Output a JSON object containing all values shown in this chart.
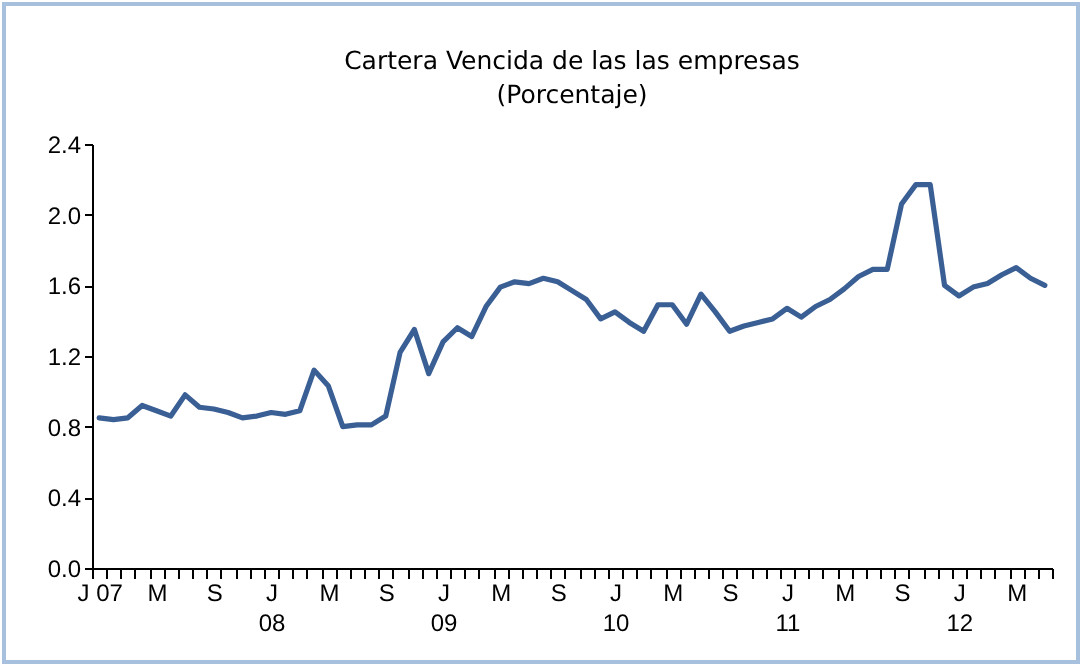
{
  "chart_data": {
    "type": "line",
    "title": "Cartera Vencida de las las empresas",
    "subtitle": "(Porcentaje)",
    "categories": [
      "J 07",
      null,
      null,
      null,
      "M",
      null,
      null,
      null,
      "S",
      null,
      null,
      null,
      "J 08",
      null,
      null,
      null,
      "M",
      null,
      null,
      null,
      "S",
      null,
      null,
      null,
      "J 09",
      null,
      null,
      null,
      "M",
      null,
      null,
      null,
      "S",
      null,
      null,
      null,
      "J 10",
      null,
      null,
      null,
      "M",
      null,
      null,
      null,
      "S",
      null,
      null,
      null,
      "J 11",
      null,
      null,
      null,
      "M",
      null,
      null,
      null,
      "S",
      null,
      null,
      null,
      "J 12",
      null,
      null,
      null,
      "M",
      null,
      null
    ],
    "series": [
      {
        "color": "#3a5f94",
        "values": [
          0.85,
          0.84,
          0.85,
          0.92,
          0.89,
          0.86,
          0.98,
          0.91,
          0.9,
          0.88,
          0.85,
          0.86,
          0.88,
          0.87,
          0.89,
          1.12,
          1.03,
          0.8,
          0.81,
          0.81,
          0.86,
          1.22,
          1.35,
          1.1,
          1.28,
          1.36,
          1.31,
          1.48,
          1.59,
          1.62,
          1.61,
          1.64,
          1.62,
          1.57,
          1.52,
          1.41,
          1.45,
          1.39,
          1.34,
          1.49,
          1.49,
          1.38,
          1.55,
          1.45,
          1.34,
          1.37,
          1.39,
          1.41,
          1.47,
          1.42,
          1.48,
          1.52,
          1.58,
          1.65,
          1.69,
          1.69,
          2.06,
          2.17,
          2.17,
          1.6,
          1.54,
          1.59,
          1.61,
          1.66,
          1.7,
          1.64,
          1.6
        ]
      }
    ],
    "ylim": [
      0,
      2.4
    ],
    "yticks": [
      {
        "value": 0,
        "label": "0.0"
      },
      {
        "value": 0.4,
        "label": "0.4"
      },
      {
        "value": 0.8,
        "label": "0.8"
      },
      {
        "value": 1.2,
        "label": "1.2"
      },
      {
        "value": 1.6,
        "label": "1.6"
      },
      {
        "value": 2,
        "label": "2.0"
      },
      {
        "value": 2.4,
        "label": "2.4"
      }
    ],
    "grid": false,
    "legend": false,
    "line_style": "solid",
    "marker": "none"
  }
}
